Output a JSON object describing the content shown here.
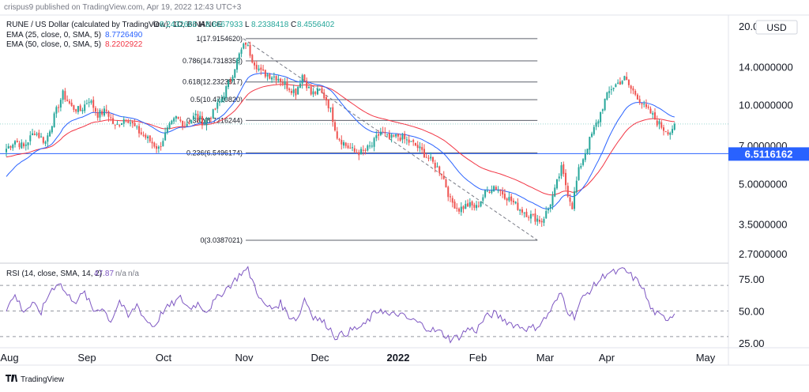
{
  "header": {
    "publisher": "crispus9 published on TradingView.com, Apr 19, 2022 12:43 UTC+3",
    "symbol": "RUNE / US Dollar (calculated by TradingView), 1D, BINANCE",
    "ohlc": [
      {
        "k": "O",
        "v": "8.2432665"
      },
      {
        "k": "H",
        "v": "8.6667933"
      },
      {
        "k": "L",
        "v": "8.2338418"
      },
      {
        "k": "C",
        "v": "8.4556402"
      }
    ],
    "ema25": {
      "label": "EMA (25, close, 0, SMA, 5)",
      "value": "8.7726490"
    },
    "ema50": {
      "label": "EMA (50, close, 0, SMA, 5)",
      "value": "8.2202922"
    }
  },
  "rsi_header": {
    "label": "RSI (14, close, SMA, 14, 2)",
    "value": "47.87",
    "na1": "n/a",
    "na2": "n/a"
  },
  "currency": "USD",
  "price_badge": "6.5116162",
  "footer": {
    "brand": "TradingView"
  },
  "colors": {
    "up": "#26a69a",
    "down": "#ef5350",
    "ema25": "#2962ff",
    "ema50": "#f23645",
    "rsi": "#7e57c2",
    "support": "#2962ff",
    "fib": "#787b86",
    "badge": "#2962ff"
  },
  "chart_data": [
    {
      "type": "candlestick",
      "title": "RUNE / US Dollar (calculated by TradingView), 1D, BINANCE",
      "scale": "log",
      "ylim": [
        2.5,
        20
      ],
      "y_ticks": [
        {
          "v": 20,
          "label": "20.0000000"
        },
        {
          "v": 14,
          "label": "14.0000000"
        },
        {
          "v": 10,
          "label": "10.0000000"
        },
        {
          "v": 7,
          "label": "7.0000000"
        },
        {
          "v": 5,
          "label": "5.0000000"
        },
        {
          "v": 3.5,
          "label": "3.5000000"
        },
        {
          "v": 2.7,
          "label": "2.7000000"
        }
      ],
      "x_ticks": [
        {
          "label": "Aug",
          "bold": false
        },
        {
          "label": "Sep",
          "bold": false
        },
        {
          "label": "Oct",
          "bold": false
        },
        {
          "label": "Nov",
          "bold": false
        },
        {
          "label": "Dec",
          "bold": false
        },
        {
          "label": "2022",
          "bold": true
        },
        {
          "label": "Feb",
          "bold": false
        },
        {
          "label": "Mar",
          "bold": false
        },
        {
          "label": "Apr",
          "bold": false
        },
        {
          "label": "May",
          "bold": false
        }
      ],
      "fib_levels": [
        {
          "label": "1(17.9154620)",
          "v": 17.915462
        },
        {
          "label": "0.786(14.7318353)",
          "v": 14.7318353
        },
        {
          "label": "0.618(12.2323817)",
          "v": 12.2323817
        },
        {
          "label": "0.5(10.4710820)",
          "v": 10.471082
        },
        {
          "label": "0.382(8.7216244)",
          "v": 8.7216244
        },
        {
          "label": "0.236(6.5496174)",
          "v": 6.5496174
        },
        {
          "label": "0(3.0387021)",
          "v": 3.0387021
        }
      ],
      "support_level": 6.5116162,
      "last_close": 8.4556402,
      "close_anchors": [
        [
          0,
          6.8
        ],
        [
          4,
          7.3
        ],
        [
          8,
          6.9
        ],
        [
          13,
          7.9
        ],
        [
          18,
          7.2
        ],
        [
          22,
          9.0
        ],
        [
          26,
          11.0
        ],
        [
          30,
          9.8
        ],
        [
          34,
          9.5
        ],
        [
          38,
          10.5
        ],
        [
          42,
          9.2
        ],
        [
          46,
          9.5
        ],
        [
          50,
          8.2
        ],
        [
          55,
          9.0
        ],
        [
          60,
          8.0
        ],
        [
          65,
          7.4
        ],
        [
          70,
          6.8
        ],
        [
          74,
          8.0
        ],
        [
          78,
          8.9
        ],
        [
          82,
          8.4
        ],
        [
          87,
          9.1
        ],
        [
          91,
          8.5
        ],
        [
          95,
          9.3
        ],
        [
          99,
          10.6
        ],
        [
          103,
          12.5
        ],
        [
          107,
          15.5
        ],
        [
          110,
          17.3
        ],
        [
          113,
          15.0
        ],
        [
          117,
          13.3
        ],
        [
          121,
          13.0
        ],
        [
          125,
          12.7
        ],
        [
          129,
          11.8
        ],
        [
          133,
          11.2
        ],
        [
          136,
          13.0
        ],
        [
          140,
          11.0
        ],
        [
          144,
          11.3
        ],
        [
          147,
          10.5
        ],
        [
          149,
          9.5
        ],
        [
          152,
          7.6
        ],
        [
          156,
          7.0
        ],
        [
          160,
          6.6
        ],
        [
          164,
          6.6
        ],
        [
          168,
          7.0
        ],
        [
          172,
          7.9
        ],
        [
          176,
          7.4
        ],
        [
          180,
          7.6
        ],
        [
          184,
          7.3
        ],
        [
          188,
          7.0
        ],
        [
          192,
          6.5
        ],
        [
          196,
          6.0
        ],
        [
          200,
          5.5
        ],
        [
          204,
          4.3
        ],
        [
          208,
          4.0
        ],
        [
          212,
          4.15
        ],
        [
          216,
          4.05
        ],
        [
          220,
          4.6
        ],
        [
          224,
          4.9
        ],
        [
          228,
          4.6
        ],
        [
          232,
          4.3
        ],
        [
          236,
          4.0
        ],
        [
          240,
          3.8
        ],
        [
          243,
          3.7
        ],
        [
          246,
          3.6
        ],
        [
          249,
          4.0
        ],
        [
          252,
          4.7
        ],
        [
          255,
          5.7
        ],
        [
          258,
          4.6
        ],
        [
          260,
          4.1
        ],
        [
          263,
          5.6
        ],
        [
          266,
          6.6
        ],
        [
          269,
          7.7
        ],
        [
          272,
          8.8
        ],
        [
          275,
          10.4
        ],
        [
          278,
          11.6
        ],
        [
          281,
          12.1
        ],
        [
          284,
          12.6
        ],
        [
          287,
          11.5
        ],
        [
          290,
          10.8
        ],
        [
          293,
          9.8
        ],
        [
          296,
          9.3
        ],
        [
          299,
          8.6
        ],
        [
          302,
          8.1
        ],
        [
          305,
          7.9
        ],
        [
          307,
          8.4556402
        ]
      ]
    },
    {
      "type": "line",
      "title": "RSI (14, close, SMA, 14, 2)",
      "ylim": [
        20,
        85
      ],
      "y_ticks": [
        {
          "v": 75,
          "label": "75.00"
        },
        {
          "v": 50,
          "label": "50.00"
        },
        {
          "v": 25,
          "label": "25.00"
        }
      ],
      "bands": [
        70,
        50,
        30
      ],
      "last_value": 47.87,
      "value_anchors": [
        [
          0,
          52
        ],
        [
          4,
          62
        ],
        [
          8,
          50
        ],
        [
          12,
          55
        ],
        [
          16,
          49
        ],
        [
          20,
          65
        ],
        [
          24,
          73
        ],
        [
          28,
          62
        ],
        [
          32,
          58
        ],
        [
          36,
          64
        ],
        [
          40,
          50
        ],
        [
          44,
          53
        ],
        [
          48,
          42
        ],
        [
          52,
          58
        ],
        [
          56,
          45
        ],
        [
          60,
          55
        ],
        [
          64,
          43
        ],
        [
          68,
          38
        ],
        [
          72,
          50
        ],
        [
          76,
          55
        ],
        [
          80,
          60
        ],
        [
          84,
          52
        ],
        [
          88,
          56
        ],
        [
          92,
          50
        ],
        [
          96,
          58
        ],
        [
          100,
          66
        ],
        [
          104,
          72
        ],
        [
          108,
          80
        ],
        [
          111,
          82
        ],
        [
          114,
          70
        ],
        [
          118,
          55
        ],
        [
          122,
          52
        ],
        [
          126,
          56
        ],
        [
          130,
          46
        ],
        [
          134,
          44
        ],
        [
          137,
          60
        ],
        [
          141,
          46
        ],
        [
          145,
          42
        ],
        [
          148,
          38
        ],
        [
          151,
          30
        ],
        [
          155,
          32
        ],
        [
          160,
          36
        ],
        [
          164,
          38
        ],
        [
          168,
          46
        ],
        [
          172,
          52
        ],
        [
          176,
          46
        ],
        [
          180,
          48
        ],
        [
          184,
          44
        ],
        [
          188,
          42
        ],
        [
          192,
          38
        ],
        [
          196,
          35
        ],
        [
          200,
          33
        ],
        [
          204,
          28
        ],
        [
          208,
          30
        ],
        [
          212,
          36
        ],
        [
          216,
          35
        ],
        [
          220,
          45
        ],
        [
          224,
          48
        ],
        [
          228,
          44
        ],
        [
          232,
          40
        ],
        [
          236,
          38
        ],
        [
          240,
          36
        ],
        [
          244,
          38
        ],
        [
          248,
          45
        ],
        [
          252,
          56
        ],
        [
          255,
          64
        ],
        [
          258,
          50
        ],
        [
          261,
          46
        ],
        [
          264,
          58
        ],
        [
          268,
          66
        ],
        [
          272,
          73
        ],
        [
          276,
          80
        ],
        [
          280,
          80
        ],
        [
          284,
          82
        ],
        [
          288,
          76
        ],
        [
          292,
          70
        ],
        [
          296,
          52
        ],
        [
          300,
          46
        ],
        [
          303,
          44
        ],
        [
          307,
          47.87
        ]
      ]
    }
  ]
}
